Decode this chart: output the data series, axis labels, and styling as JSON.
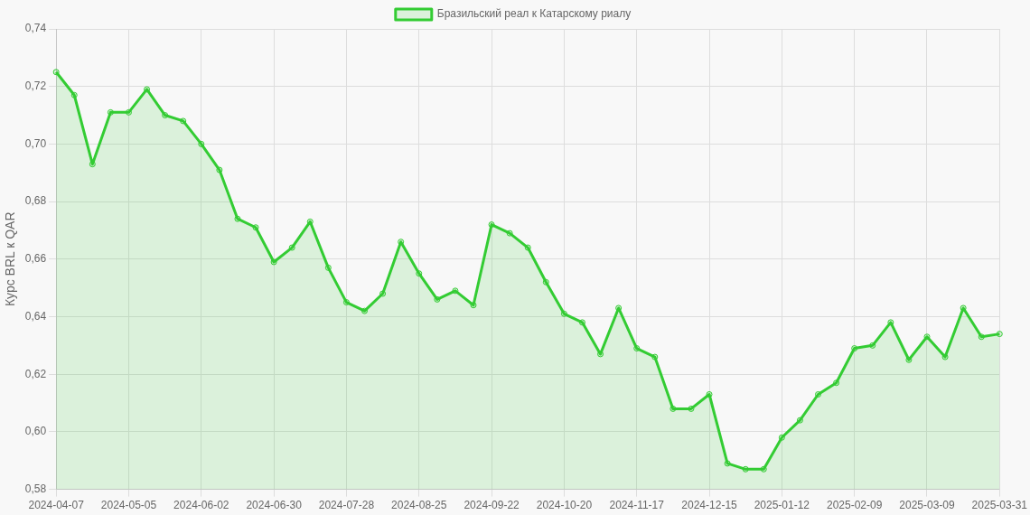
{
  "chart_data": {
    "type": "area",
    "ylabel": "Курс BRL к QAR",
    "categories": [
      "2024-04-07",
      null,
      null,
      null,
      "2024-05-05",
      null,
      null,
      null,
      "2024-06-02",
      null,
      null,
      null,
      "2024-06-30",
      null,
      null,
      null,
      "2024-07-28",
      null,
      null,
      null,
      "2024-08-25",
      null,
      null,
      null,
      "2024-09-22",
      null,
      null,
      null,
      "2024-10-20",
      null,
      null,
      null,
      "2024-11-17",
      null,
      null,
      null,
      "2024-12-15",
      null,
      null,
      null,
      "2025-01-12",
      null,
      null,
      null,
      "2025-02-09",
      null,
      null,
      null,
      "2025-03-09",
      null,
      null,
      null,
      "2025-03-31"
    ],
    "series": [
      {
        "name": "Бразильский реал к Катарскому риалу",
        "color": "#33cc33",
        "values": [
          0.725,
          0.717,
          0.693,
          0.711,
          0.711,
          0.719,
          0.71,
          0.708,
          0.7,
          0.691,
          0.674,
          0.671,
          0.659,
          0.664,
          0.673,
          0.657,
          0.645,
          0.642,
          0.648,
          0.666,
          0.655,
          0.646,
          0.649,
          0.644,
          0.672,
          0.669,
          0.664,
          0.652,
          0.641,
          0.638,
          0.627,
          0.643,
          0.629,
          0.626,
          0.608,
          0.608,
          0.613,
          0.589,
          0.587,
          0.587,
          0.598,
          0.604,
          0.613,
          0.617,
          0.629,
          0.63,
          0.638,
          0.625,
          0.633,
          0.626,
          0.643,
          0.633,
          0.634
        ]
      }
    ],
    "ylim": [
      0.58,
      0.74
    ],
    "yticks": [
      {
        "value": 0.58,
        "label": "0,58"
      },
      {
        "value": 0.6,
        "label": "0,60"
      },
      {
        "value": 0.62,
        "label": "0,62"
      },
      {
        "value": 0.64,
        "label": "0,64"
      },
      {
        "value": 0.66,
        "label": "0,66"
      },
      {
        "value": 0.68,
        "label": "0,68"
      },
      {
        "value": 0.7,
        "label": "0,70"
      },
      {
        "value": 0.72,
        "label": "0,72"
      },
      {
        "value": 0.74,
        "label": "0,74"
      }
    ],
    "grid": true,
    "legend": "top",
    "marker": "circle",
    "line_style": "solid"
  }
}
